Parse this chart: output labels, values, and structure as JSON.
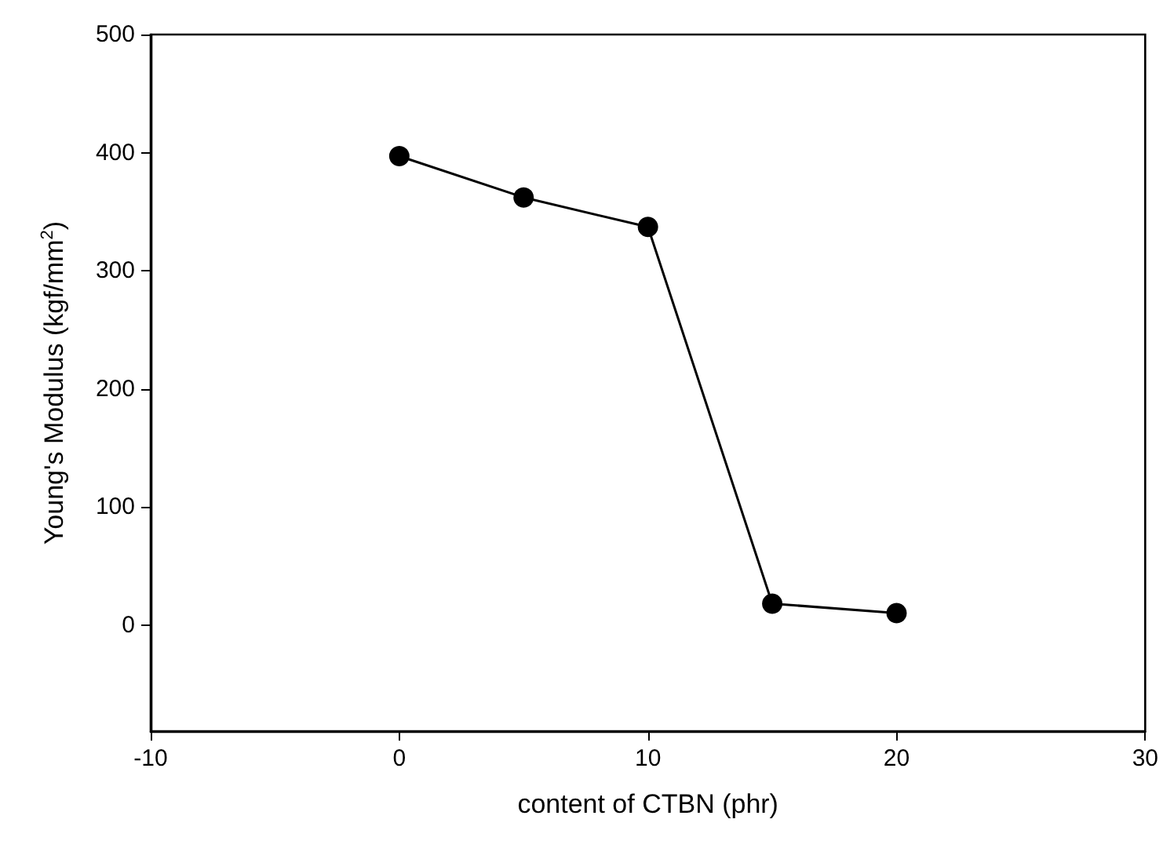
{
  "chart_data": {
    "type": "line",
    "xlabel": "content of CTBN (phr)",
    "ylabel": "Young's Modulus (kgf/mm$^{2}$)",
    "x": [
      0,
      5,
      10,
      15,
      20
    ],
    "series": [
      {
        "color": "#000000",
        "values": [
          397,
          362,
          337,
          18,
          10
        ]
      }
    ],
    "xlim": [
      -10,
      30
    ],
    "xticks": [
      -10,
      0,
      10,
      20,
      30
    ],
    "ylim": [
      -90,
      500
    ],
    "yticks": [
      0,
      100,
      200,
      300,
      400,
      500
    ],
    "marker": "circle",
    "line_style": "solid",
    "grid": false
  }
}
